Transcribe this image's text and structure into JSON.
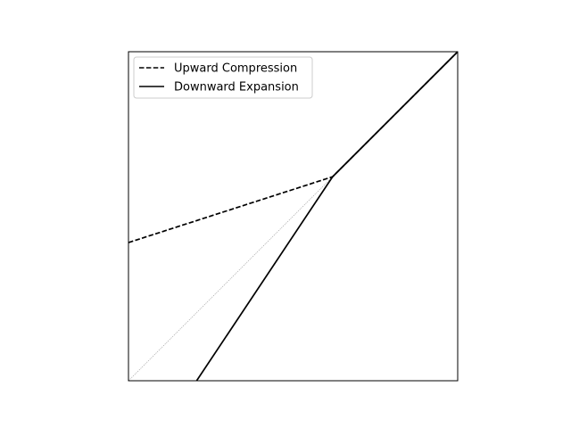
{
  "chart_data": {
    "type": "line",
    "title": "",
    "xlabel": "",
    "ylabel": "",
    "xlim": [
      0,
      1
    ],
    "ylim": [
      0,
      1
    ],
    "grid": false,
    "axis_ticks": false,
    "legend": {
      "placement": "upper-left",
      "entries": [
        {
          "label": "Upward Compression",
          "style": "dashed",
          "color": "#000000"
        },
        {
          "label": "Downward Expansion",
          "style": "solid",
          "color": "#000000"
        }
      ]
    },
    "series": [
      {
        "name": "Upward Compression",
        "style": "dashed",
        "color": "#000000",
        "x": [
          0,
          0.62,
          1
        ],
        "y": [
          0.42,
          0.62,
          1
        ]
      },
      {
        "name": "Downward Expansion",
        "style": "solid",
        "color": "#000000",
        "x": [
          0.207,
          0.62,
          1
        ],
        "y": [
          0,
          0.62,
          1
        ]
      }
    ],
    "reference_line": {
      "style": "dotted",
      "color": "#a0a0a0",
      "x": [
        0,
        1
      ],
      "y": [
        0,
        1
      ]
    }
  }
}
